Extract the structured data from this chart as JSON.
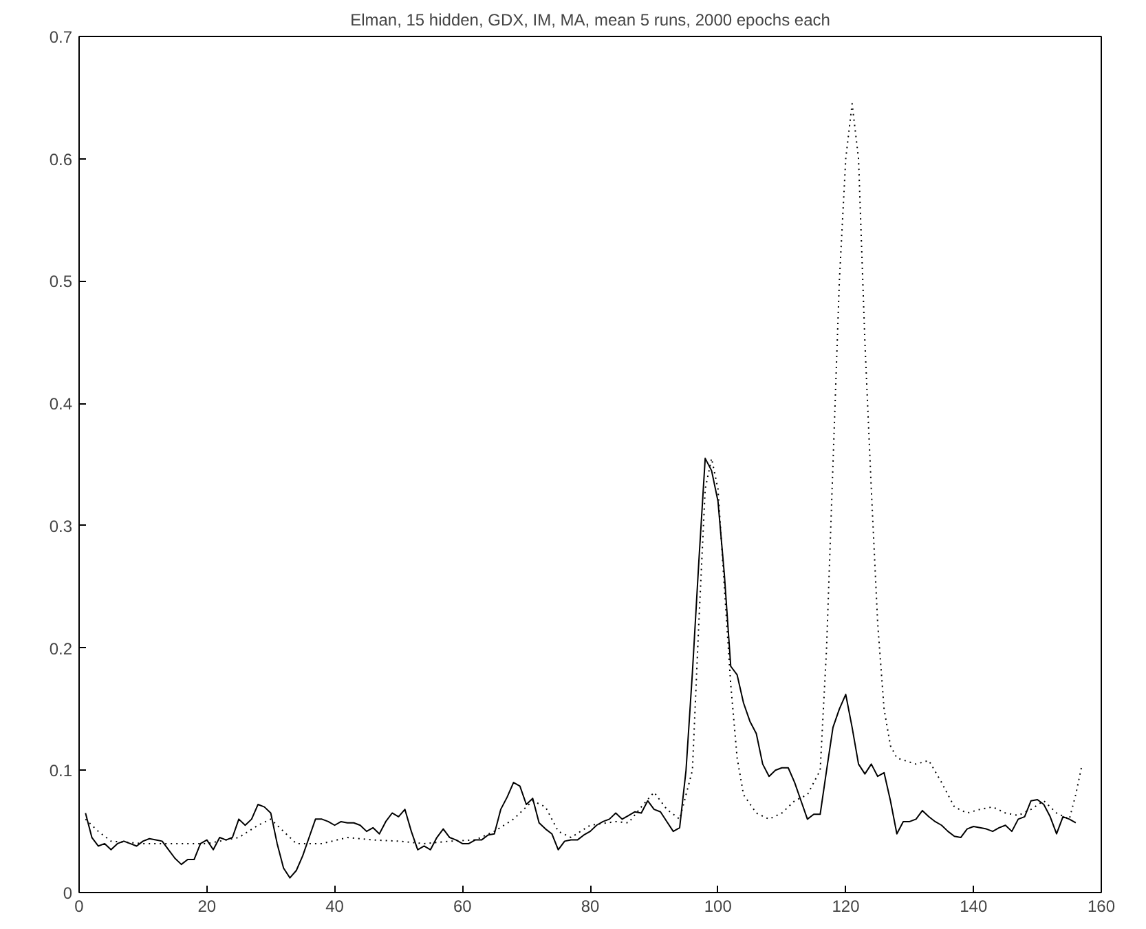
{
  "chart_data": {
    "type": "line",
    "title": "Elman, 15 hidden, GDX, IM, MA, mean 5 runs, 2000 epochs each",
    "xlim": [
      0,
      160
    ],
    "xticks": [
      0,
      20,
      40,
      60,
      80,
      100,
      120,
      140,
      160
    ],
    "ylim": [
      0,
      0.7
    ],
    "yticks": [
      0,
      0.1,
      0.2,
      0.3,
      0.4,
      0.5,
      0.6,
      0.7
    ],
    "grid": false,
    "series": [
      {
        "color": "#000000",
        "line_style": "solid",
        "x": [
          1,
          2,
          3,
          4,
          5,
          6,
          7,
          8,
          9,
          10,
          11,
          12,
          13,
          14,
          15,
          16,
          17,
          18,
          19,
          20,
          21,
          22,
          23,
          24,
          25,
          26,
          27,
          28,
          29,
          30,
          31,
          32,
          33,
          34,
          35,
          36,
          37,
          38,
          39,
          40,
          41,
          42,
          43,
          44,
          45,
          46,
          47,
          48,
          49,
          50,
          51,
          52,
          53,
          54,
          55,
          56,
          57,
          58,
          59,
          60,
          61,
          62,
          63,
          64,
          65,
          66,
          67,
          68,
          69,
          70,
          71,
          72,
          73,
          74,
          75,
          76,
          77,
          78,
          79,
          80,
          81,
          82,
          83,
          84,
          85,
          86,
          87,
          88,
          89,
          90,
          91,
          92,
          93,
          94,
          95,
          96,
          97,
          98,
          99,
          100,
          101,
          102,
          103,
          104,
          105,
          106,
          107,
          108,
          109,
          110,
          111,
          112,
          113,
          114,
          115,
          116,
          117,
          118,
          119,
          120,
          121,
          122,
          123,
          124,
          125,
          126,
          127,
          128,
          129,
          130,
          131,
          132,
          133,
          134,
          135,
          136,
          137,
          138,
          139,
          140,
          141,
          142,
          143,
          144,
          145,
          146,
          147,
          148,
          149,
          150,
          151,
          152,
          153,
          154,
          155,
          156
        ],
        "values": [
          0.065,
          0.045,
          0.038,
          0.04,
          0.035,
          0.04,
          0.042,
          0.04,
          0.038,
          0.042,
          0.044,
          0.043,
          0.042,
          0.035,
          0.028,
          0.023,
          0.027,
          0.027,
          0.04,
          0.043,
          0.035,
          0.045,
          0.043,
          0.045,
          0.06,
          0.055,
          0.06,
          0.072,
          0.07,
          0.065,
          0.04,
          0.02,
          0.012,
          0.018,
          0.03,
          0.045,
          0.06,
          0.06,
          0.058,
          0.055,
          0.058,
          0.057,
          0.057,
          0.055,
          0.05,
          0.053,
          0.048,
          0.058,
          0.065,
          0.062,
          0.068,
          0.05,
          0.035,
          0.038,
          0.035,
          0.045,
          0.052,
          0.045,
          0.043,
          0.04,
          0.04,
          0.043,
          0.043,
          0.047,
          0.048,
          0.068,
          0.078,
          0.09,
          0.087,
          0.072,
          0.077,
          0.057,
          0.052,
          0.048,
          0.035,
          0.042,
          0.043,
          0.043,
          0.047,
          0.05,
          0.055,
          0.058,
          0.06,
          0.065,
          0.06,
          0.063,
          0.066,
          0.065,
          0.075,
          0.068,
          0.066,
          0.058,
          0.05,
          0.053,
          0.1,
          0.18,
          0.27,
          0.355,
          0.345,
          0.32,
          0.26,
          0.185,
          0.178,
          0.155,
          0.14,
          0.13,
          0.105,
          0.095,
          0.1,
          0.102,
          0.102,
          0.09,
          0.075,
          0.06,
          0.064,
          0.064,
          0.1,
          0.135,
          0.15,
          0.162,
          0.135,
          0.105,
          0.097,
          0.105,
          0.095,
          0.098,
          0.075,
          0.048,
          0.058,
          0.058,
          0.06,
          0.067,
          0.062,
          0.058,
          0.055,
          0.05,
          0.046,
          0.045,
          0.052,
          0.054,
          0.053,
          0.052,
          0.05,
          0.053,
          0.055,
          0.05,
          0.06,
          0.062,
          0.075,
          0.076,
          0.072,
          0.062,
          0.048,
          0.062,
          0.06,
          0.057
        ]
      },
      {
        "color": "#000000",
        "line_style": "dotted",
        "x": [
          1,
          3,
          5,
          10,
          15,
          20,
          25,
          28,
          30,
          32,
          34,
          38,
          42,
          46,
          50,
          54,
          58,
          62,
          65,
          68,
          71,
          73,
          75,
          77,
          80,
          84,
          86,
          88,
          90,
          92,
          94,
          96,
          97,
          98,
          99,
          100,
          101,
          102,
          103,
          104,
          106,
          108,
          110,
          112,
          114,
          116,
          117,
          118,
          119,
          120,
          121,
          122,
          123,
          124,
          125,
          126,
          127,
          128,
          131,
          133,
          135,
          137,
          139,
          141,
          143,
          145,
          147,
          149,
          151,
          153,
          155,
          156,
          157
        ],
        "values": [
          0.06,
          0.05,
          0.042,
          0.04,
          0.04,
          0.04,
          0.045,
          0.055,
          0.06,
          0.05,
          0.04,
          0.04,
          0.045,
          0.043,
          0.042,
          0.04,
          0.042,
          0.043,
          0.05,
          0.06,
          0.075,
          0.07,
          0.05,
          0.045,
          0.055,
          0.058,
          0.057,
          0.07,
          0.082,
          0.068,
          0.06,
          0.1,
          0.22,
          0.33,
          0.355,
          0.33,
          0.25,
          0.17,
          0.11,
          0.08,
          0.065,
          0.06,
          0.065,
          0.075,
          0.08,
          0.1,
          0.2,
          0.35,
          0.5,
          0.6,
          0.645,
          0.6,
          0.45,
          0.33,
          0.22,
          0.15,
          0.12,
          0.11,
          0.105,
          0.108,
          0.09,
          0.07,
          0.065,
          0.068,
          0.07,
          0.065,
          0.063,
          0.068,
          0.075,
          0.065,
          0.06,
          0.08,
          0.105
        ]
      }
    ]
  }
}
